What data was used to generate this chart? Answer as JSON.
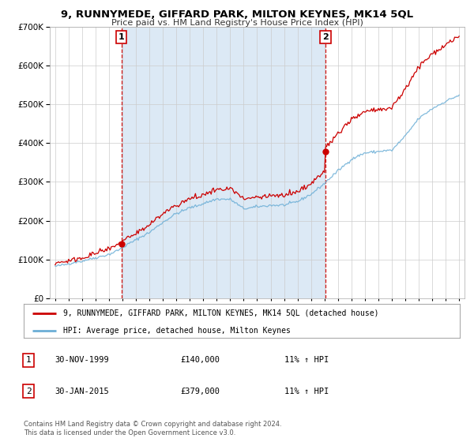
{
  "title": "9, RUNNYMEDE, GIFFARD PARK, MILTON KEYNES, MK14 5QL",
  "subtitle": "Price paid vs. HM Land Registry's House Price Index (HPI)",
  "background_color": "#ffffff",
  "plot_bg_color": "#ffffff",
  "owned_bg_color": "#dce9f5",
  "grid_color": "#cccccc",
  "sale1": {
    "date_num": 1999.917,
    "price": 140000,
    "label": "1",
    "date_str": "30-NOV-1999",
    "pct": "11%"
  },
  "sale2": {
    "date_num": 2015.083,
    "price": 379000,
    "label": "2",
    "date_str": "30-JAN-2015",
    "pct": "11%"
  },
  "hpi_line_color": "#6baed6",
  "price_line_color": "#cc0000",
  "sale_marker_color": "#cc0000",
  "vline_color": "#cc0000",
  "ylim": [
    0,
    700000
  ],
  "xlim": [
    1994.6,
    2025.4
  ],
  "yticks": [
    0,
    100000,
    200000,
    300000,
    400000,
    500000,
    600000,
    700000
  ],
  "xticks": [
    1995,
    1996,
    1997,
    1998,
    1999,
    2000,
    2001,
    2002,
    2003,
    2004,
    2005,
    2006,
    2007,
    2008,
    2009,
    2010,
    2011,
    2012,
    2013,
    2014,
    2015,
    2016,
    2017,
    2018,
    2019,
    2020,
    2021,
    2022,
    2023,
    2024,
    2025
  ],
  "legend_label_red": "9, RUNNYMEDE, GIFFARD PARK, MILTON KEYNES, MK14 5QL (detached house)",
  "legend_label_blue": "HPI: Average price, detached house, Milton Keynes",
  "footer1": "Contains HM Land Registry data © Crown copyright and database right 2024.",
  "footer2": "This data is licensed under the Open Government Licence v3.0.",
  "table_rows": [
    {
      "num": "1",
      "date": "30-NOV-1999",
      "price": "£140,000",
      "pct": "11% ↑ HPI"
    },
    {
      "num": "2",
      "date": "30-JAN-2015",
      "price": "£379,000",
      "pct": "11% ↑ HPI"
    }
  ]
}
